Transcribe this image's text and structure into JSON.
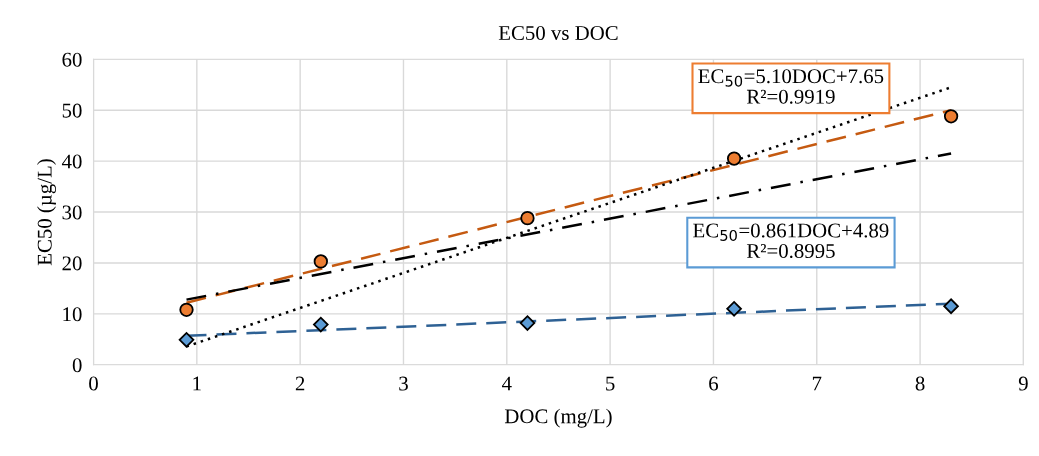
{
  "chart_data": {
    "type": "scatter",
    "title": "EC50 vs DOC",
    "xlabel": "DOC (mg/L)",
    "ylabel": "EC50 (µg/L)",
    "xlim": [
      0,
      9
    ],
    "xticks": [
      0,
      1,
      2,
      3,
      4,
      5,
      6,
      7,
      8,
      9
    ],
    "ylim": [
      0,
      60
    ],
    "yticks": [
      0,
      10,
      20,
      30,
      40,
      50,
      60
    ],
    "grid": true,
    "series": [
      {
        "color": "#ed7d31",
        "marker": "circle",
        "x": [
          0.9,
          2.2,
          4.2,
          6.2,
          8.3
        ],
        "values": [
          10.8,
          20.3,
          28.8,
          40.5,
          48.8
        ]
      },
      {
        "color": "#5b9bd5",
        "marker": "diamond",
        "x": [
          0.9,
          2.2,
          4.2,
          6.2,
          8.3
        ],
        "values": [
          4.9,
          7.9,
          8.2,
          11.0,
          11.5
        ]
      },
      {
        "type": "line",
        "color": "#c55a11",
        "line_style": "dashed",
        "x": [
          0.9,
          8.3
        ],
        "values": [
          12.2,
          50.0
        ]
      },
      {
        "type": "line",
        "color": "#2e6194",
        "line_style": "dashed",
        "x": [
          0.9,
          8.3
        ],
        "values": [
          5.7,
          12.0
        ]
      },
      {
        "type": "line",
        "color": "#000000",
        "line_style": "dotted",
        "x": [
          0.9,
          8.3
        ],
        "values": [
          3.6,
          54.5
        ]
      },
      {
        "type": "line",
        "color": "#000000",
        "line_style": "dashdot",
        "x": [
          0.9,
          8.3
        ],
        "values": [
          12.8,
          41.5
        ]
      }
    ],
    "annotations": [
      "EC$_{50}$=5.10DOC+7.65\nR²=0.9919",
      "EC$_{50}$=0.861DOC+4.89\nR²=0.8995"
    ]
  }
}
